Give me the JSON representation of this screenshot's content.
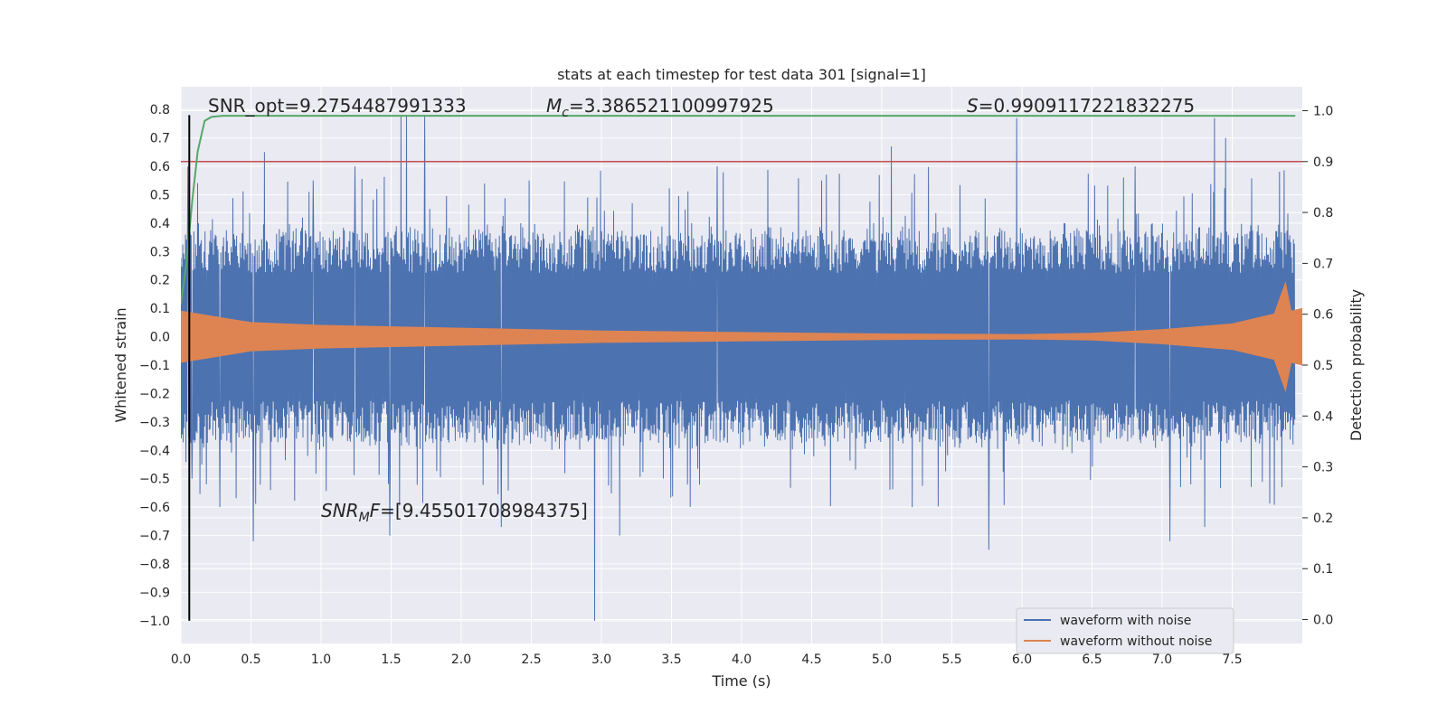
{
  "chart_data": {
    "type": "line",
    "title": "stats at each timestep for test data 301 [signal=1]",
    "xlabel": "Time (s)",
    "ylabel": "Whitened strain",
    "y2label": "Detection probability",
    "xlim": [
      0,
      8.0
    ],
    "ylim": [
      -1.08,
      0.88
    ],
    "y2lim": [
      -0.047,
      1.047
    ],
    "xticks": [
      0.0,
      0.5,
      1.0,
      1.5,
      2.0,
      2.5,
      3.0,
      3.5,
      4.0,
      4.5,
      5.0,
      5.5,
      6.0,
      6.5,
      7.0,
      7.5
    ],
    "xtick_labels": [
      "0.0",
      "0.5",
      "1.0",
      "1.5",
      "2.0",
      "2.5",
      "3.0",
      "3.5",
      "4.0",
      "4.5",
      "5.0",
      "5.5",
      "6.0",
      "6.5",
      "7.0",
      "7.5"
    ],
    "yticks": [
      0.8,
      0.7,
      0.6,
      0.5,
      0.4,
      0.3,
      0.2,
      0.1,
      0.0,
      -0.1,
      -0.2,
      -0.3,
      -0.4,
      -0.5,
      -0.6,
      -0.7,
      -0.8,
      -0.9,
      -1.0
    ],
    "ytick_labels": [
      "0.8",
      "0.7",
      "0.6",
      "0.5",
      "0.4",
      "0.3",
      "0.2",
      "0.1",
      "0.0",
      "−0.1",
      "−0.2",
      "−0.3",
      "−0.4",
      "−0.5",
      "−0.6",
      "−0.7",
      "−0.8",
      "−0.9",
      "−1.0"
    ],
    "y2ticks": [
      1.0,
      0.9,
      0.8,
      0.7,
      0.6,
      0.5,
      0.4,
      0.3,
      0.2,
      0.1,
      0.0
    ],
    "y2tick_labels": [
      "1.0",
      "0.9",
      "0.8",
      "0.7",
      "0.6",
      "0.5",
      "0.4",
      "0.3",
      "0.2",
      "0.1",
      "0.0"
    ],
    "grid": true,
    "legend": {
      "placement": "lower-right",
      "entries": [
        "waveform with noise",
        "waveform without noise"
      ]
    },
    "series": [
      {
        "name": "waveform with noise",
        "color": "#4c72b0",
        "axis": "left",
        "typical_upper": 0.25,
        "typical_lower": -0.25,
        "peaks": [
          [
            0.05,
            0.6
          ],
          [
            0.08,
            -0.5
          ],
          [
            0.15,
            -0.45
          ],
          [
            0.28,
            -0.6
          ],
          [
            0.52,
            -0.72
          ],
          [
            0.6,
            0.65
          ],
          [
            0.95,
            0.55
          ],
          [
            1.25,
            0.6
          ],
          [
            1.5,
            0.78
          ],
          [
            1.58,
            0.78
          ],
          [
            1.62,
            0.78
          ],
          [
            1.75,
            0.78
          ],
          [
            1.5,
            -0.7
          ],
          [
            2.3,
            -0.67
          ],
          [
            2.97,
            -1.0
          ],
          [
            3.15,
            -0.7
          ],
          [
            2.5,
            0.55
          ],
          [
            3.85,
            0.6
          ],
          [
            4.6,
            0.55
          ],
          [
            5.1,
            0.67
          ],
          [
            5.25,
            -0.6
          ],
          [
            5.8,
            -0.75
          ],
          [
            6.0,
            0.77
          ],
          [
            6.85,
            0.6
          ],
          [
            7.1,
            -0.72
          ],
          [
            7.35,
            -0.67
          ],
          [
            7.42,
            0.77
          ],
          [
            7.5,
            0.7
          ]
        ]
      },
      {
        "name": "waveform without noise",
        "color": "#dd8452",
        "axis": "left",
        "envelope": [
          [
            0.0,
            0.09
          ],
          [
            0.5,
            0.05
          ],
          [
            1.0,
            0.04
          ],
          [
            2.0,
            0.03
          ],
          [
            3.0,
            0.02
          ],
          [
            4.0,
            0.015
          ],
          [
            5.0,
            0.01
          ],
          [
            6.0,
            0.008
          ],
          [
            6.5,
            0.012
          ],
          [
            7.0,
            0.025
          ],
          [
            7.5,
            0.045
          ],
          [
            7.8,
            0.08
          ],
          [
            7.88,
            0.19
          ],
          [
            7.92,
            0.09
          ],
          [
            8.0,
            0.1
          ]
        ]
      },
      {
        "name": "detection probability",
        "color": "#55a868",
        "axis": "right",
        "points": [
          [
            0.0,
            0.62
          ],
          [
            0.04,
            0.7
          ],
          [
            0.08,
            0.82
          ],
          [
            0.12,
            0.92
          ],
          [
            0.17,
            0.98
          ],
          [
            0.22,
            0.988
          ],
          [
            0.3,
            0.99
          ],
          [
            1.0,
            0.99
          ],
          [
            7.95,
            0.99
          ]
        ]
      },
      {
        "name": "threshold",
        "color": "#c44e52",
        "axis": "right",
        "value": 0.9
      }
    ],
    "vline": {
      "x": 0.06,
      "color": "#000000",
      "ymin": -1.0,
      "ymax": 0.78
    },
    "annotations": {
      "snr_opt": "SNR_opt=9.2754487991333",
      "mc_symbol": "M",
      "mc_sub": "c",
      "mc_value": "=3.386521100997925",
      "s_symbol": "S",
      "s_value": "=0.9909117221832275",
      "snrmf_symbol": "SNR",
      "snrmf_sub": "M",
      "snrmf_f": "F",
      "snrmf_value": "=[9.45501708984375]"
    }
  }
}
